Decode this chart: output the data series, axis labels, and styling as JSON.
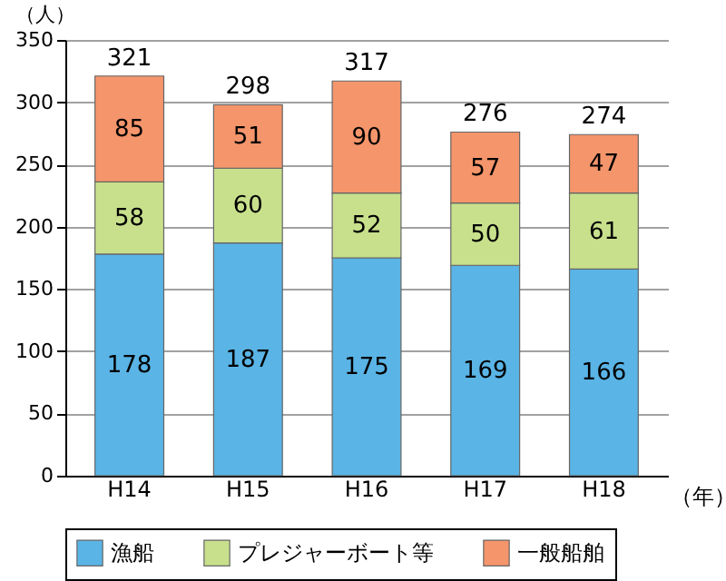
{
  "chart_data": {
    "type": "bar",
    "stacked": true,
    "categories": [
      "H14",
      "H15",
      "H16",
      "H17",
      "H18"
    ],
    "series": [
      {
        "name": "漁船",
        "color": "#5ab4e5",
        "values": [
          178,
          187,
          175,
          169,
          166
        ]
      },
      {
        "name": "プレジャーボート等",
        "color": "#c8e08c",
        "values": [
          58,
          60,
          52,
          50,
          61
        ]
      },
      {
        "name": "一般船舶",
        "color": "#f4956b",
        "values": [
          85,
          51,
          90,
          57,
          47
        ]
      }
    ],
    "totals": [
      "321",
      "298",
      "317",
      "276",
      "274"
    ],
    "data_labels": true,
    "ylim": [
      0,
      350
    ],
    "yticks": [
      0,
      50,
      100,
      150,
      200,
      250,
      300,
      350
    ],
    "ylabel": "（人）",
    "xlabel": "（年）",
    "grid": "y",
    "legend": "bottom"
  }
}
